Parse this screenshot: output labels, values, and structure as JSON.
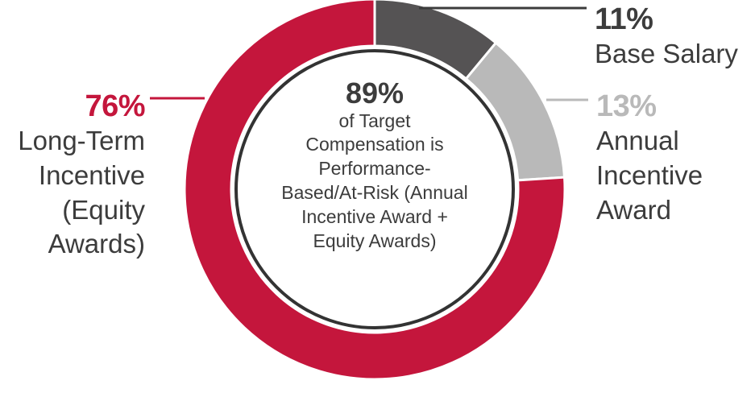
{
  "chart_data": {
    "type": "pie",
    "variant": "donut",
    "slices": [
      {
        "label": "Base Salary",
        "value": 11,
        "percent_label": "11%",
        "color": "#555354"
      },
      {
        "label": "Annual Incentive Award",
        "value": 13,
        "percent_label": "13%",
        "color": "#b9b9b9"
      },
      {
        "label": "Long-Term Incentive (Equity Awards)",
        "value": 76,
        "percent_label": "76%",
        "color": "#c4163c"
      }
    ],
    "center": {
      "value": "89%",
      "text": "of Target\nCompensation is\nPerformance-\nBased/At-Risk (Annual\nIncentive Award +\nEquity Awards)",
      "arc_color": "#333333"
    }
  },
  "labels": {
    "base": {
      "pct": "11%",
      "name": "Base Salary",
      "color": "#3c3c3c"
    },
    "annual": {
      "pct": "13%",
      "name": "Annual\nIncentive\nAward",
      "color": "#b9b9b9"
    },
    "ltip": {
      "pct": "76%",
      "name": "Long-Term\nIncentive\n(Equity\nAwards)",
      "color": "#c4163c"
    }
  }
}
